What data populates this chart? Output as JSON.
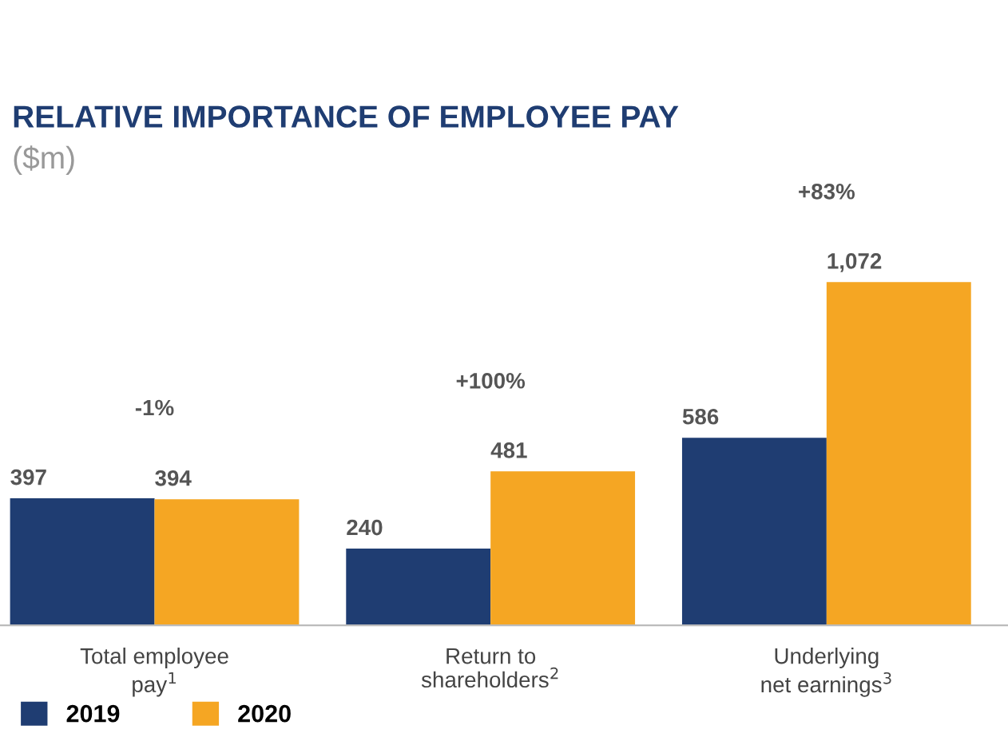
{
  "chart_data": {
    "type": "bar",
    "title": "RELATIVE IMPORTANCE OF EMPLOYEE PAY",
    "subtitle": "($m)",
    "categories": [
      "Total employee\npay$^{1}$",
      "Return to\nshareholders$^{2}$",
      "Underlying\nnet earnings$^{3}$"
    ],
    "series": [
      {
        "name": "2019",
        "color": "#1f3d72",
        "values": [
          397,
          240,
          586
        ],
        "value_labels": [
          "397",
          "240",
          "586"
        ]
      },
      {
        "name": "2020",
        "color": "#f5a623",
        "values": [
          394,
          481,
          1072
        ],
        "value_labels": [
          "394",
          "481",
          "1,072"
        ]
      }
    ],
    "annotations": [
      "-1%",
      "+100%",
      "+83%"
    ],
    "legend": "bottom left",
    "grid": false
  }
}
